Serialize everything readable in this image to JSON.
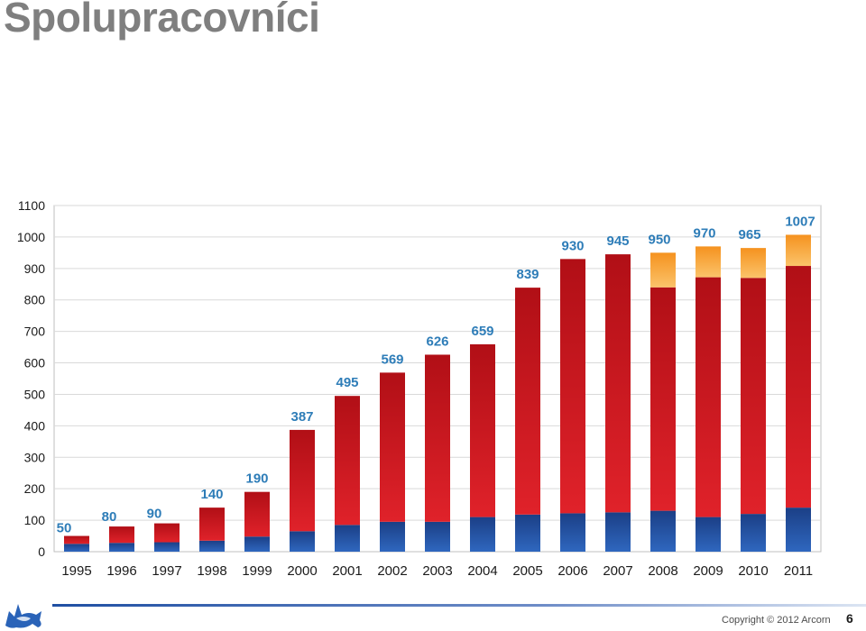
{
  "slide": {
    "title": "Spolupracovníci",
    "copyright": "Copyright © 2012 Arcorn",
    "page_number": "6"
  },
  "chart_data": {
    "type": "bar",
    "stacked": true,
    "title": "",
    "xlabel": "",
    "ylabel": "",
    "ylim": [
      0,
      1100
    ],
    "yticks": [
      0,
      100,
      200,
      300,
      400,
      500,
      600,
      700,
      800,
      900,
      1000,
      1100
    ],
    "grid": true,
    "legend": "none",
    "categories": [
      "1995",
      "1996",
      "1997",
      "1998",
      "1999",
      "2000",
      "2001",
      "2002",
      "2003",
      "2004",
      "2005",
      "2006",
      "2007",
      "2008",
      "2009",
      "2010",
      "2011"
    ],
    "series": [
      {
        "color": "#1f4f9e",
        "values": [
          25,
          28,
          30,
          35,
          48,
          65,
          85,
          95,
          95,
          110,
          118,
          122,
          125,
          130,
          110,
          120,
          140
        ]
      },
      {
        "color": "#c9141c",
        "values": [
          25,
          52,
          60,
          105,
          142,
          322,
          410,
          474,
          531,
          549,
          721,
          808,
          820,
          710,
          762,
          750,
          768
        ]
      },
      {
        "color": "#f59a2a",
        "values": [
          0,
          0,
          0,
          0,
          0,
          0,
          0,
          0,
          0,
          0,
          0,
          0,
          0,
          110,
          98,
          95,
          99
        ]
      }
    ],
    "totals": [
      50,
      80,
      90,
      140,
      190,
      387,
      495,
      569,
      626,
      659,
      839,
      930,
      945,
      950,
      970,
      965,
      1007
    ],
    "colors": {
      "label": "#2e7db8",
      "grid": "#d9d9d9",
      "axis": "#bfbfbf"
    }
  }
}
